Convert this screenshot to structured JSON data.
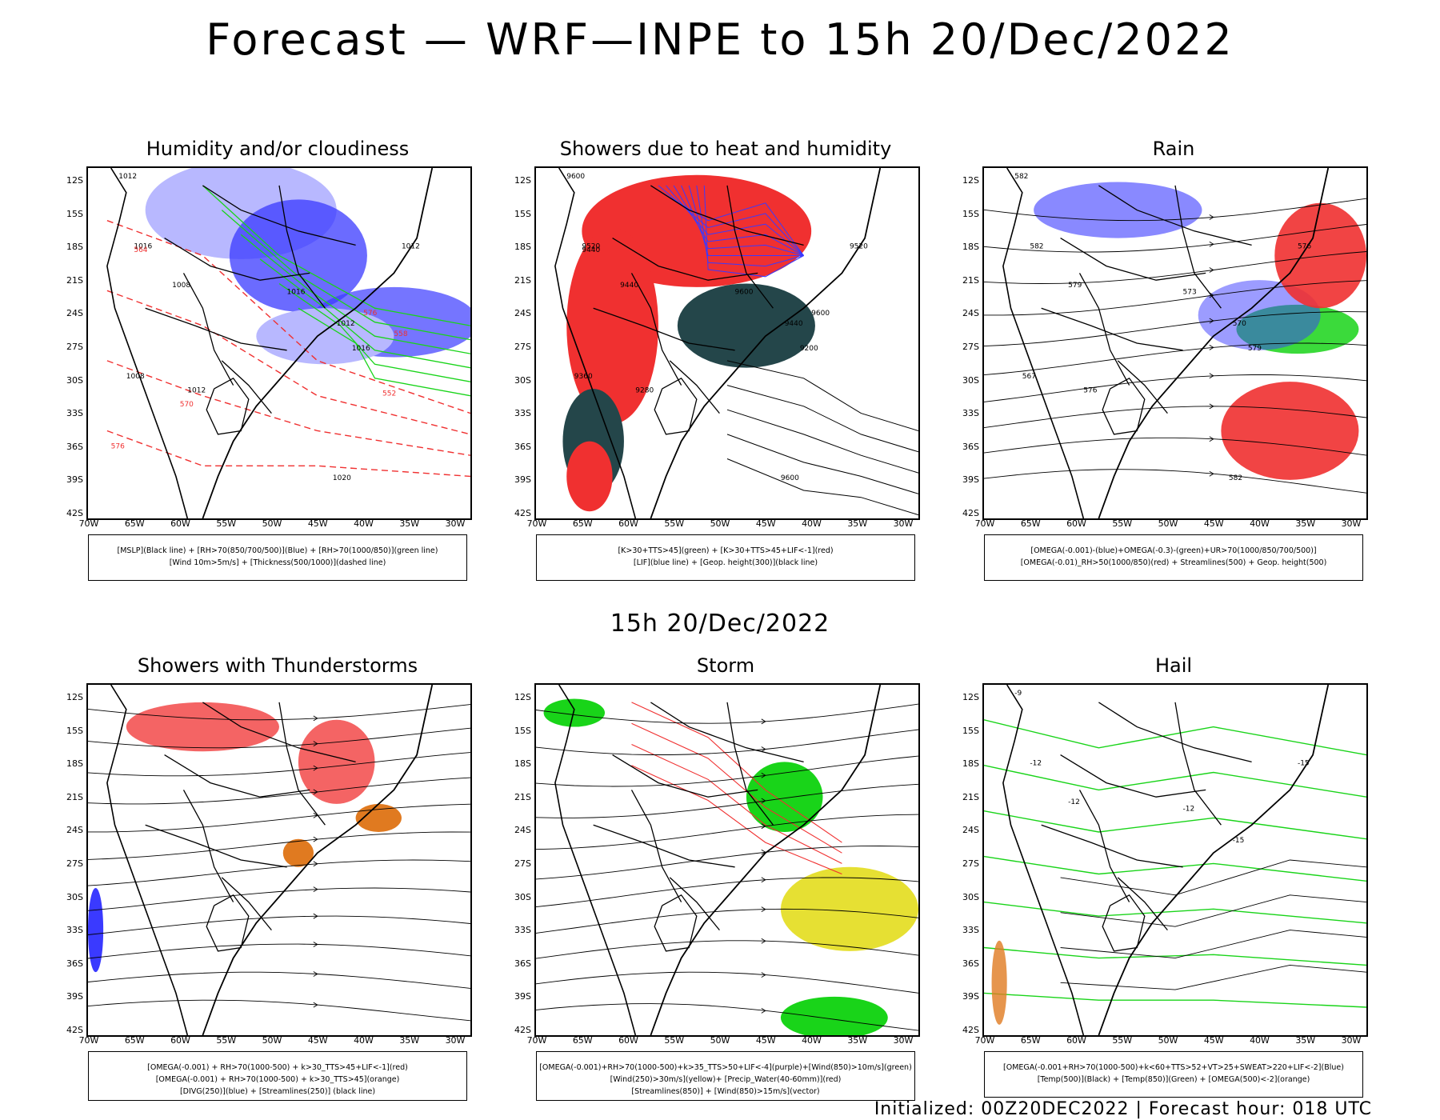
{
  "title": "Forecast — WRF—INPE to 15h 20/Dec/2022",
  "subtitle": "15h 20/Dec/2022",
  "footer": "Initialized: 00Z20DEC2022 | Forecast hour: 018 UTC",
  "lat_labels": [
    "12S",
    "15S",
    "18S",
    "21S",
    "24S",
    "27S",
    "30S",
    "33S",
    "36S",
    "39S",
    "42S"
  ],
  "lon_labels": [
    "70W",
    "65W",
    "60W",
    "55W",
    "50W",
    "45W",
    "40W",
    "35W",
    "30W"
  ],
  "panels": [
    {
      "title": "Humidity and/or cloudiness",
      "legend": [
        "[MSLP](Black line) + [RH>70(850/700/500)](Blue) + [RH>70(1000/850)](green line)",
        "[Wind 10m>5m/s] + [Thickness(500/1000)](dashed line)"
      ],
      "map_labels": [
        "1012",
        "1016",
        "1008",
        "1012",
        "1016",
        "1012",
        "1008",
        "1012",
        "1016",
        "1020",
        "576",
        "564",
        "558",
        "552",
        "570",
        "576"
      ]
    },
    {
      "title": "Showers due to heat and humidity",
      "legend": [
        "[K>30+TTS>45](green) + [K>30+TTS>45+LIF<-1](red)",
        "[LIF](blue line) + [Geop. height(300)](black line)"
      ],
      "map_labels": [
        "9600",
        "9520",
        "9440",
        "9520",
        "9600",
        "9440",
        "9360",
        "9280",
        "9200",
        "9600",
        "9600",
        "9440"
      ]
    },
    {
      "title": "Rain",
      "legend": [
        "[OMEGA(-0.001)-(blue)+OMEGA(-0.3)-(green)+UR>70(1000/850/700/500)]",
        "[OMEGA(-0.01)_RH>50(1000/850)(red) + Streamlines(500) + Geop. height(500)"
      ],
      "map_labels": [
        "582",
        "582",
        "579",
        "576",
        "573",
        "570",
        "567",
        "576",
        "579",
        "582"
      ]
    },
    {
      "title": "Showers with Thunderstorms",
      "legend": [
        "[OMEGA(-0.001) + RH>70(1000-500) + k>30_TTS>45+LIF<-1](red)",
        "[OMEGA(-0.001) + RH>70(1000-500) + k>30_TTS>45](orange)",
        "[DIVG(250)](blue) + [Streamlines(250)] (black line)"
      ],
      "map_labels": []
    },
    {
      "title": "Storm",
      "legend": [
        "[OMEGA(-0.001)+RH>70(1000-500)+k>35_TTS>50+LIF<-4](purple)+[Wind(850)>10m/s](green)",
        "[Wind(250)>30m/s](yellow)+ [Precip_Water(40-60mm)](red)",
        "[Streamlines(850)] + [Wind(850)>15m/s](vector)"
      ],
      "map_labels": []
    },
    {
      "title": "Hail",
      "legend": [
        "[OMEGA(-0.001+RH>70(1000-500)+k<60+TTS>52+VT>25+SWEAT>220+LIF<-2](Blue)",
        "[Temp(500)](Black) + [Temp(850)](Green) + [OMEGA(500)<-2](orange)"
      ],
      "map_labels": [
        "-9",
        "-12",
        "-12",
        "-15",
        "-12",
        "-15"
      ]
    }
  ],
  "colors": {
    "black": "#000000",
    "blue": "#3a3aff",
    "lightblue": "#b8b8ff",
    "green": "#19d419",
    "red": "#f03030",
    "darkteal": "#24464a",
    "yellow": "#e6e033",
    "orange": "#e07a20"
  }
}
